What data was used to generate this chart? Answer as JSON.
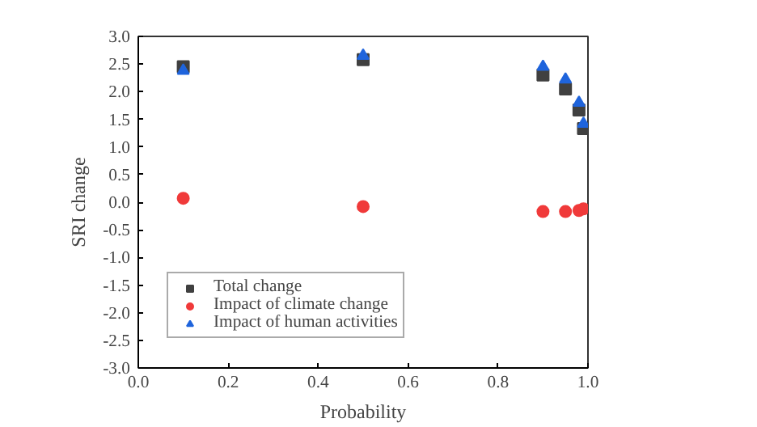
{
  "chart_data": {
    "type": "scatter",
    "xlabel": "Probability",
    "ylabel": "SRI change",
    "x": [
      0.1,
      0.5,
      0.9,
      0.95,
      0.98,
      0.99
    ],
    "xlim": [
      0,
      1
    ],
    "xticks": [
      {
        "value": 0,
        "label": "0.0"
      },
      0.2,
      0.4,
      0.6,
      0.8,
      {
        "value": 1,
        "label": "1.0"
      }
    ],
    "ylim": [
      -3,
      3
    ],
    "yticks": [
      {
        "value": -3,
        "label": "-3.0"
      },
      -2.5,
      {
        "value": -2,
        "label": "-2.0"
      },
      -1.5,
      {
        "value": -1,
        "label": "-1.0"
      },
      -0.5,
      {
        "value": 0,
        "label": "0.0"
      },
      0.5,
      {
        "value": 1,
        "label": "1.0"
      },
      1.5,
      {
        "value": 2,
        "label": "2.0"
      },
      2.5,
      {
        "value": 3,
        "label": "3.0"
      }
    ],
    "series": [
      {
        "name": "Total change",
        "color": "#404040",
        "marker": "square",
        "values": [
          2.45,
          2.58,
          2.3,
          2.05,
          1.67,
          1.33
        ]
      },
      {
        "name": "Impact of climate change",
        "color": "#f03a3a",
        "marker": "circle",
        "values": [
          0.07,
          -0.08,
          -0.17,
          -0.17,
          -0.15,
          -0.12
        ]
      },
      {
        "name": "Impact of human activities",
        "color": "#1f64dc",
        "marker": "triangle",
        "values": [
          2.38,
          2.65,
          2.45,
          2.22,
          1.8,
          1.42
        ]
      }
    ],
    "legend": "bottom left",
    "grid": false
  }
}
